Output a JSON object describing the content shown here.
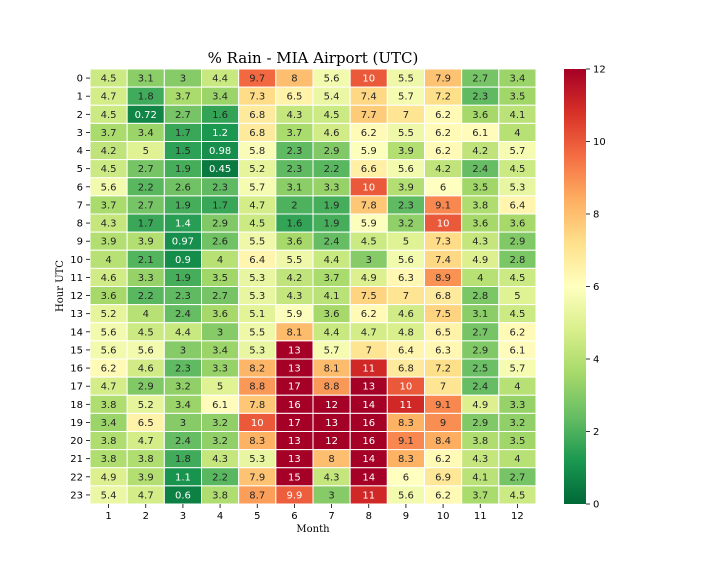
{
  "chart_data": {
    "type": "heatmap",
    "title": "% Rain - MIA Airport (UTC)",
    "xlabel": "Month",
    "ylabel": "Hour UTC",
    "x": [
      "1",
      "2",
      "3",
      "4",
      "5",
      "6",
      "7",
      "8",
      "9",
      "10",
      "11",
      "12"
    ],
    "y": [
      "0",
      "1",
      "2",
      "3",
      "4",
      "5",
      "6",
      "7",
      "8",
      "9",
      "10",
      "11",
      "12",
      "13",
      "14",
      "15",
      "16",
      "17",
      "18",
      "19",
      "20",
      "21",
      "22",
      "23"
    ],
    "values": [
      [
        "4.5",
        "3.1",
        "3",
        "4.4",
        "9.7",
        "8",
        "5.6",
        "10",
        "5.5",
        "7.9",
        "2.7",
        "3.4"
      ],
      [
        "4.7",
        "1.8",
        "3.7",
        "3.4",
        "7.3",
        "6.5",
        "5.4",
        "7.4",
        "5.7",
        "7.2",
        "2.3",
        "3.5"
      ],
      [
        "4.5",
        "0.72",
        "2.7",
        "1.6",
        "6.8",
        "4.3",
        "4.5",
        "7.7",
        "7",
        "6.2",
        "3.6",
        "4.1"
      ],
      [
        "3.7",
        "3.4",
        "1.7",
        "1.2",
        "6.8",
        "3.7",
        "4.6",
        "6.2",
        "5.5",
        "6.2",
        "6.1",
        "4"
      ],
      [
        "4.2",
        "5",
        "1.5",
        "0.98",
        "5.8",
        "2.3",
        "2.9",
        "5.9",
        "3.9",
        "6.2",
        "4.2",
        "5.7"
      ],
      [
        "4.5",
        "2.7",
        "1.9",
        "0.45",
        "5.2",
        "2.3",
        "2.2",
        "6.6",
        "5.6",
        "4.2",
        "2.4",
        "4.5"
      ],
      [
        "5.6",
        "2.2",
        "2.6",
        "2.3",
        "5.7",
        "3.1",
        "3.3",
        "10",
        "3.9",
        "6",
        "3.5",
        "5.3"
      ],
      [
        "3.7",
        "2.7",
        "1.9",
        "1.7",
        "4.7",
        "2",
        "1.9",
        "7.8",
        "2.3",
        "9.1",
        "3.8",
        "6.4"
      ],
      [
        "4.3",
        "1.7",
        "1.4",
        "2.9",
        "4.5",
        "1.6",
        "1.9",
        "5.9",
        "3.2",
        "10",
        "3.6",
        "3.6"
      ],
      [
        "3.9",
        "3.9",
        "0.97",
        "2.6",
        "5.5",
        "3.6",
        "2.4",
        "4.5",
        "5",
        "7.3",
        "4.3",
        "2.9"
      ],
      [
        "4",
        "2.1",
        "0.9",
        "4",
        "6.4",
        "5.5",
        "4.4",
        "3",
        "5.6",
        "7.4",
        "4.9",
        "2.8"
      ],
      [
        "4.6",
        "3.3",
        "1.9",
        "3.5",
        "5.3",
        "4.2",
        "3.7",
        "4.9",
        "6.3",
        "8.9",
        "4",
        "4.5"
      ],
      [
        "3.6",
        "2.2",
        "2.3",
        "2.7",
        "5.3",
        "4.3",
        "4.1",
        "7.5",
        "7",
        "6.8",
        "2.8",
        "5"
      ],
      [
        "5.2",
        "4",
        "2.4",
        "3.6",
        "5.1",
        "5.9",
        "3.6",
        "6.2",
        "4.6",
        "7.5",
        "3.1",
        "4.5"
      ],
      [
        "5.6",
        "4.5",
        "4.4",
        "3",
        "5.5",
        "8.1",
        "4.4",
        "4.7",
        "4.8",
        "6.5",
        "2.7",
        "6.2"
      ],
      [
        "5.6",
        "5.6",
        "3",
        "3.4",
        "5.3",
        "13",
        "5.7",
        "7",
        "6.4",
        "6.3",
        "2.9",
        "6.1"
      ],
      [
        "6.2",
        "4.6",
        "2.3",
        "3.3",
        "8.2",
        "13",
        "8.1",
        "11",
        "6.8",
        "7.2",
        "2.5",
        "5.7"
      ],
      [
        "4.7",
        "2.9",
        "3.2",
        "5",
        "8.8",
        "17",
        "8.8",
        "13",
        "10",
        "7",
        "2.4",
        "4"
      ],
      [
        "3.8",
        "5.2",
        "3.4",
        "6.1",
        "7.8",
        "16",
        "12",
        "14",
        "11",
        "9.1",
        "4.9",
        "3.3"
      ],
      [
        "3.4",
        "6.5",
        "3",
        "3.2",
        "10",
        "17",
        "13",
        "16",
        "8.3",
        "9",
        "2.9",
        "3.2"
      ],
      [
        "3.8",
        "4.7",
        "2.4",
        "3.2",
        "8.3",
        "13",
        "12",
        "16",
        "9.1",
        "8.4",
        "3.8",
        "3.5"
      ],
      [
        "3.8",
        "3.8",
        "1.8",
        "4.3",
        "5.3",
        "13",
        "8",
        "14",
        "8.3",
        "6.2",
        "4.3",
        "4"
      ],
      [
        "4.9",
        "3.9",
        "1.1",
        "2.2",
        "7.9",
        "15",
        "4.3",
        "14",
        "6",
        "6.9",
        "4.1",
        "2.7"
      ],
      [
        "5.4",
        "4.7",
        "0.6",
        "3.8",
        "8.7",
        "9.9",
        "3",
        "11",
        "5.6",
        "6.2",
        "3.7",
        "4.5"
      ]
    ],
    "vmin": 0,
    "vmax": 12,
    "colormap": "RdYlGn_r",
    "colorbar_ticks": [
      "0",
      "2",
      "4",
      "6",
      "8",
      "10",
      "12"
    ],
    "colorbar_tick_values": [
      0,
      2,
      4,
      6,
      8,
      10,
      12
    ]
  }
}
